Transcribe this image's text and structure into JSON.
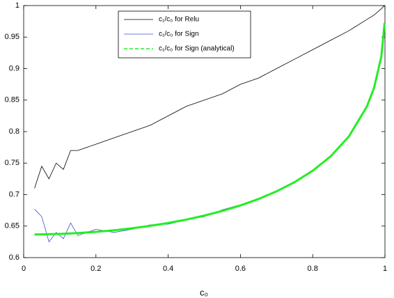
{
  "chart_data": {
    "type": "line",
    "xlabel": "c₀",
    "x": [
      0.03,
      0.05,
      0.07,
      0.09,
      0.11,
      0.13,
      0.15,
      0.2,
      0.25,
      0.3,
      0.35,
      0.4,
      0.45,
      0.5,
      0.55,
      0.6,
      0.65,
      0.7,
      0.75,
      0.8,
      0.85,
      0.9,
      0.95,
      0.97,
      0.99,
      0.999
    ],
    "series": [
      {
        "name": "c₁/c₀ for Relu",
        "color": "#000000",
        "width": 0.8,
        "dash": false,
        "values": [
          0.71,
          0.745,
          0.725,
          0.75,
          0.74,
          0.77,
          0.77,
          0.78,
          0.79,
          0.8,
          0.81,
          0.825,
          0.84,
          0.85,
          0.86,
          0.875,
          0.885,
          0.9,
          0.915,
          0.93,
          0.945,
          0.96,
          0.978,
          0.985,
          0.995,
          1.0
        ]
      },
      {
        "name": "c₁/c₀ for Sign",
        "color": "#3a4fd0",
        "width": 0.8,
        "dash": false,
        "values": [
          0.677,
          0.665,
          0.625,
          0.64,
          0.63,
          0.655,
          0.635,
          0.645,
          0.64,
          0.645,
          0.652,
          0.653,
          0.66,
          0.665,
          0.676,
          0.684,
          0.693,
          0.706,
          0.72,
          0.738,
          0.761,
          0.792,
          0.84,
          0.87,
          0.919,
          0.972
        ]
      },
      {
        "name": "c₁/c₀ for Sign (analytical)",
        "color": "#22ee22",
        "width": 3,
        "dash": true,
        "values": [
          0.6367,
          0.6369,
          0.6371,
          0.6375,
          0.6379,
          0.6384,
          0.639,
          0.6409,
          0.6434,
          0.6466,
          0.6504,
          0.655,
          0.6603,
          0.6667,
          0.6741,
          0.6828,
          0.693,
          0.7052,
          0.7198,
          0.7379,
          0.7609,
          0.7921,
          0.8398,
          0.8698,
          0.9191,
          0.9725
        ]
      }
    ],
    "xlim": [
      0,
      1
    ],
    "xticks": [
      0,
      0.2,
      0.4,
      0.6,
      0.8,
      1
    ],
    "ylim": [
      0.6,
      1
    ],
    "yticks": [
      0.6,
      0.65,
      0.7,
      0.75,
      0.8,
      0.85,
      0.9,
      0.95,
      1
    ],
    "legend": "upper center"
  }
}
